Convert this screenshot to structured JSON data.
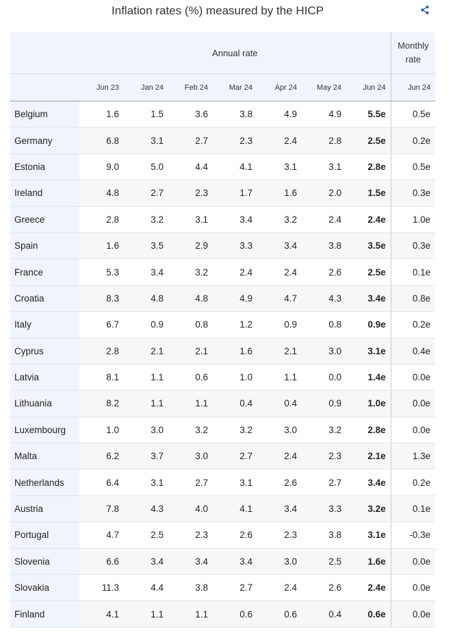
{
  "title": "Inflation rates (%) measured by the HICP",
  "share_icon": "share-icon",
  "headers": {
    "annual": "Annual rate",
    "monthly": "Monthly rate",
    "columns": [
      "Jun 23",
      "Jan 24",
      "Feb 24",
      "Mar 24",
      "Apr 24",
      "May 24",
      "Jun 24",
      "Jun 24"
    ]
  },
  "rows": [
    {
      "country": "Belgium",
      "values": [
        "1.6",
        "1.5",
        "3.6",
        "3.8",
        "4.9",
        "4.9",
        "5.5e",
        "0.5e"
      ]
    },
    {
      "country": "Germany",
      "values": [
        "6.8",
        "3.1",
        "2.7",
        "2.3",
        "2.4",
        "2.8",
        "2.5e",
        "0.2e"
      ]
    },
    {
      "country": "Estonia",
      "values": [
        "9.0",
        "5.0",
        "4.4",
        "4.1",
        "3.1",
        "3.1",
        "2.8e",
        "0.5e"
      ]
    },
    {
      "country": "Ireland",
      "values": [
        "4.8",
        "2.7",
        "2.3",
        "1.7",
        "1.6",
        "2.0",
        "1.5e",
        "0.3e"
      ]
    },
    {
      "country": "Greece",
      "values": [
        "2.8",
        "3.2",
        "3.1",
        "3.4",
        "3.2",
        "2.4",
        "2.4e",
        "1.0e"
      ]
    },
    {
      "country": "Spain",
      "values": [
        "1.6",
        "3.5",
        "2.9",
        "3.3",
        "3.4",
        "3.8",
        "3.5e",
        "0.3e"
      ]
    },
    {
      "country": "France",
      "values": [
        "5.3",
        "3.4",
        "3.2",
        "2.4",
        "2.4",
        "2.6",
        "2.5e",
        "0.1e"
      ]
    },
    {
      "country": "Croatia",
      "values": [
        "8.3",
        "4.8",
        "4.8",
        "4.9",
        "4.7",
        "4.3",
        "3.4e",
        "0.8e"
      ]
    },
    {
      "country": "Italy",
      "values": [
        "6.7",
        "0.9",
        "0.8",
        "1.2",
        "0.9",
        "0.8",
        "0.9e",
        "0.2e"
      ]
    },
    {
      "country": "Cyprus",
      "values": [
        "2.8",
        "2.1",
        "2.1",
        "1.6",
        "2.1",
        "3.0",
        "3.1e",
        "0.4e"
      ]
    },
    {
      "country": "Latvia",
      "values": [
        "8.1",
        "1.1",
        "0.6",
        "1.0",
        "1.1",
        "0.0",
        "1.4e",
        "0.0e"
      ]
    },
    {
      "country": "Lithuania",
      "values": [
        "8.2",
        "1.1",
        "1.1",
        "0.4",
        "0.4",
        "0.9",
        "1.0e",
        "0.0e"
      ]
    },
    {
      "country": "Luxembourg",
      "values": [
        "1.0",
        "3.0",
        "3.2",
        "3.2",
        "3.0",
        "3.2",
        "2.8e",
        "0.0e"
      ]
    },
    {
      "country": "Malta",
      "values": [
        "6.2",
        "3.7",
        "3.0",
        "2.7",
        "2.4",
        "2.3",
        "2.1e",
        "1.3e"
      ]
    },
    {
      "country": "Netherlands",
      "values": [
        "6.4",
        "3.1",
        "2.7",
        "3.1",
        "2.6",
        "2.7",
        "3.4e",
        "0.2e"
      ]
    },
    {
      "country": "Austria",
      "values": [
        "7.8",
        "4.3",
        "4.0",
        "4.1",
        "3.4",
        "3.3",
        "3.2e",
        "0.1e"
      ]
    },
    {
      "country": "Portugal",
      "values": [
        "4.7",
        "2.5",
        "2.3",
        "2.6",
        "2.3",
        "3.8",
        "3.1e",
        "-0.3e"
      ]
    },
    {
      "country": "Slovenia",
      "values": [
        "6.6",
        "3.4",
        "3.4",
        "3.4",
        "3.0",
        "2.5",
        "1.6e",
        "0.0e"
      ]
    },
    {
      "country": "Slovakia",
      "values": [
        "11.3",
        "4.4",
        "3.8",
        "2.7",
        "2.4",
        "2.6",
        "2.4e",
        "0.0e"
      ]
    },
    {
      "country": "Finland",
      "values": [
        "4.1",
        "1.1",
        "1.1",
        "0.6",
        "0.6",
        "0.4",
        "0.6e",
        "0.0e"
      ]
    }
  ]
}
